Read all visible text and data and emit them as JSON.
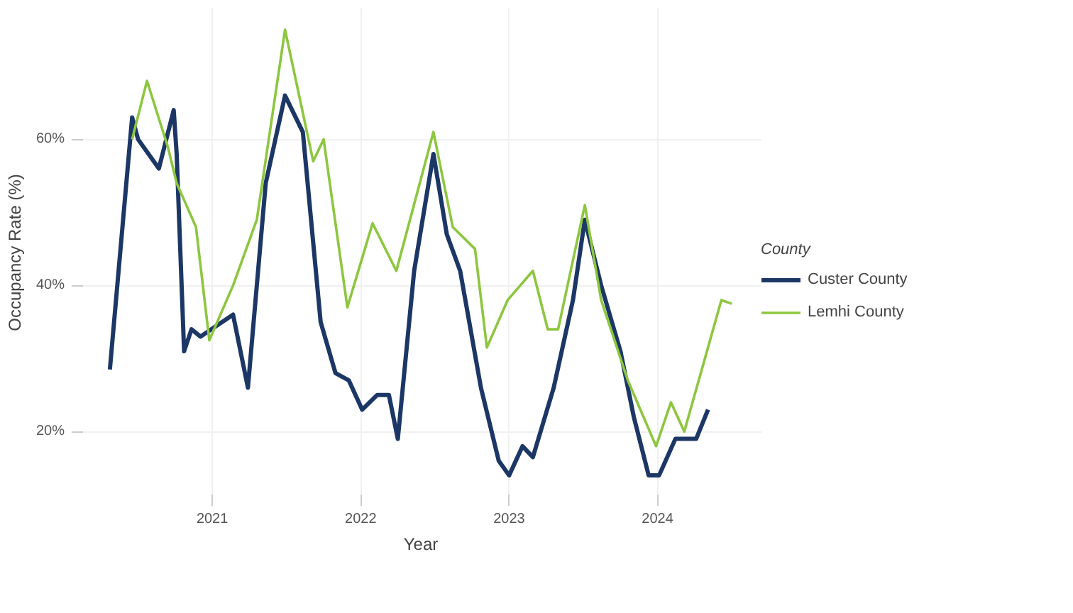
{
  "chart_data": {
    "type": "line",
    "xlabel": "Year",
    "ylabel": "Occupancy Rate (%)",
    "legend_title": "County",
    "legend": "right",
    "grid": true,
    "xlim": [
      2020.11,
      2024.7
    ],
    "xticks": [
      2021,
      2022,
      2023,
      2024
    ],
    "ylim": [
      11,
      78
    ],
    "yticks": [
      {
        "value": 20,
        "label": "20%"
      },
      {
        "value": 40,
        "label": "40%"
      },
      {
        "value": 60,
        "label": "60%"
      }
    ],
    "series": [
      {
        "name": "Custer County",
        "color": "#1c3766",
        "x": [
          2020.31,
          2020.46,
          2020.5,
          2020.64,
          2020.74,
          2020.76,
          2020.81,
          2020.86,
          2020.92,
          2021.14,
          2021.24,
          2021.36,
          2021.49,
          2021.61,
          2021.73,
          2021.83,
          2021.92,
          2022.01,
          2022.11,
          2022.19,
          2022.25,
          2022.36,
          2022.49,
          2022.58,
          2022.67,
          2022.81,
          2022.93,
          2023.0,
          2023.09,
          2023.16,
          2023.3,
          2023.43,
          2023.51,
          2023.62,
          2023.75,
          2023.84,
          2023.94,
          2024.01,
          2024.12,
          2024.26,
          2024.34
        ],
        "values": [
          28.5,
          63,
          60,
          56,
          64,
          58,
          31,
          34,
          33,
          36,
          26,
          54,
          66,
          61,
          35,
          28,
          27,
          23,
          25,
          25,
          19,
          42,
          58,
          47,
          42,
          26,
          16,
          14,
          18,
          16.5,
          26,
          38,
          49,
          40,
          31,
          22,
          14,
          14,
          19,
          19,
          23
        ]
      },
      {
        "name": "Lemhi County",
        "color": "#8dc63f",
        "x": [
          2020.46,
          2020.56,
          2020.7,
          2020.76,
          2020.89,
          2020.98,
          2021.14,
          2021.3,
          2021.49,
          2021.68,
          2021.75,
          2021.91,
          2022.08,
          2022.24,
          2022.49,
          2022.62,
          2022.77,
          2022.85,
          2022.99,
          2023.16,
          2023.26,
          2023.33,
          2023.51,
          2023.62,
          2023.8,
          2023.99,
          2024.09,
          2024.18,
          2024.43,
          2024.5
        ],
        "values": [
          60,
          68,
          59,
          54,
          48,
          32.5,
          40,
          49,
          75,
          57,
          60,
          37,
          48.5,
          42,
          61,
          48,
          45,
          31.5,
          38,
          42,
          34,
          34,
          51,
          38,
          27,
          18,
          24,
          20,
          38,
          37.5
        ]
      }
    ]
  }
}
